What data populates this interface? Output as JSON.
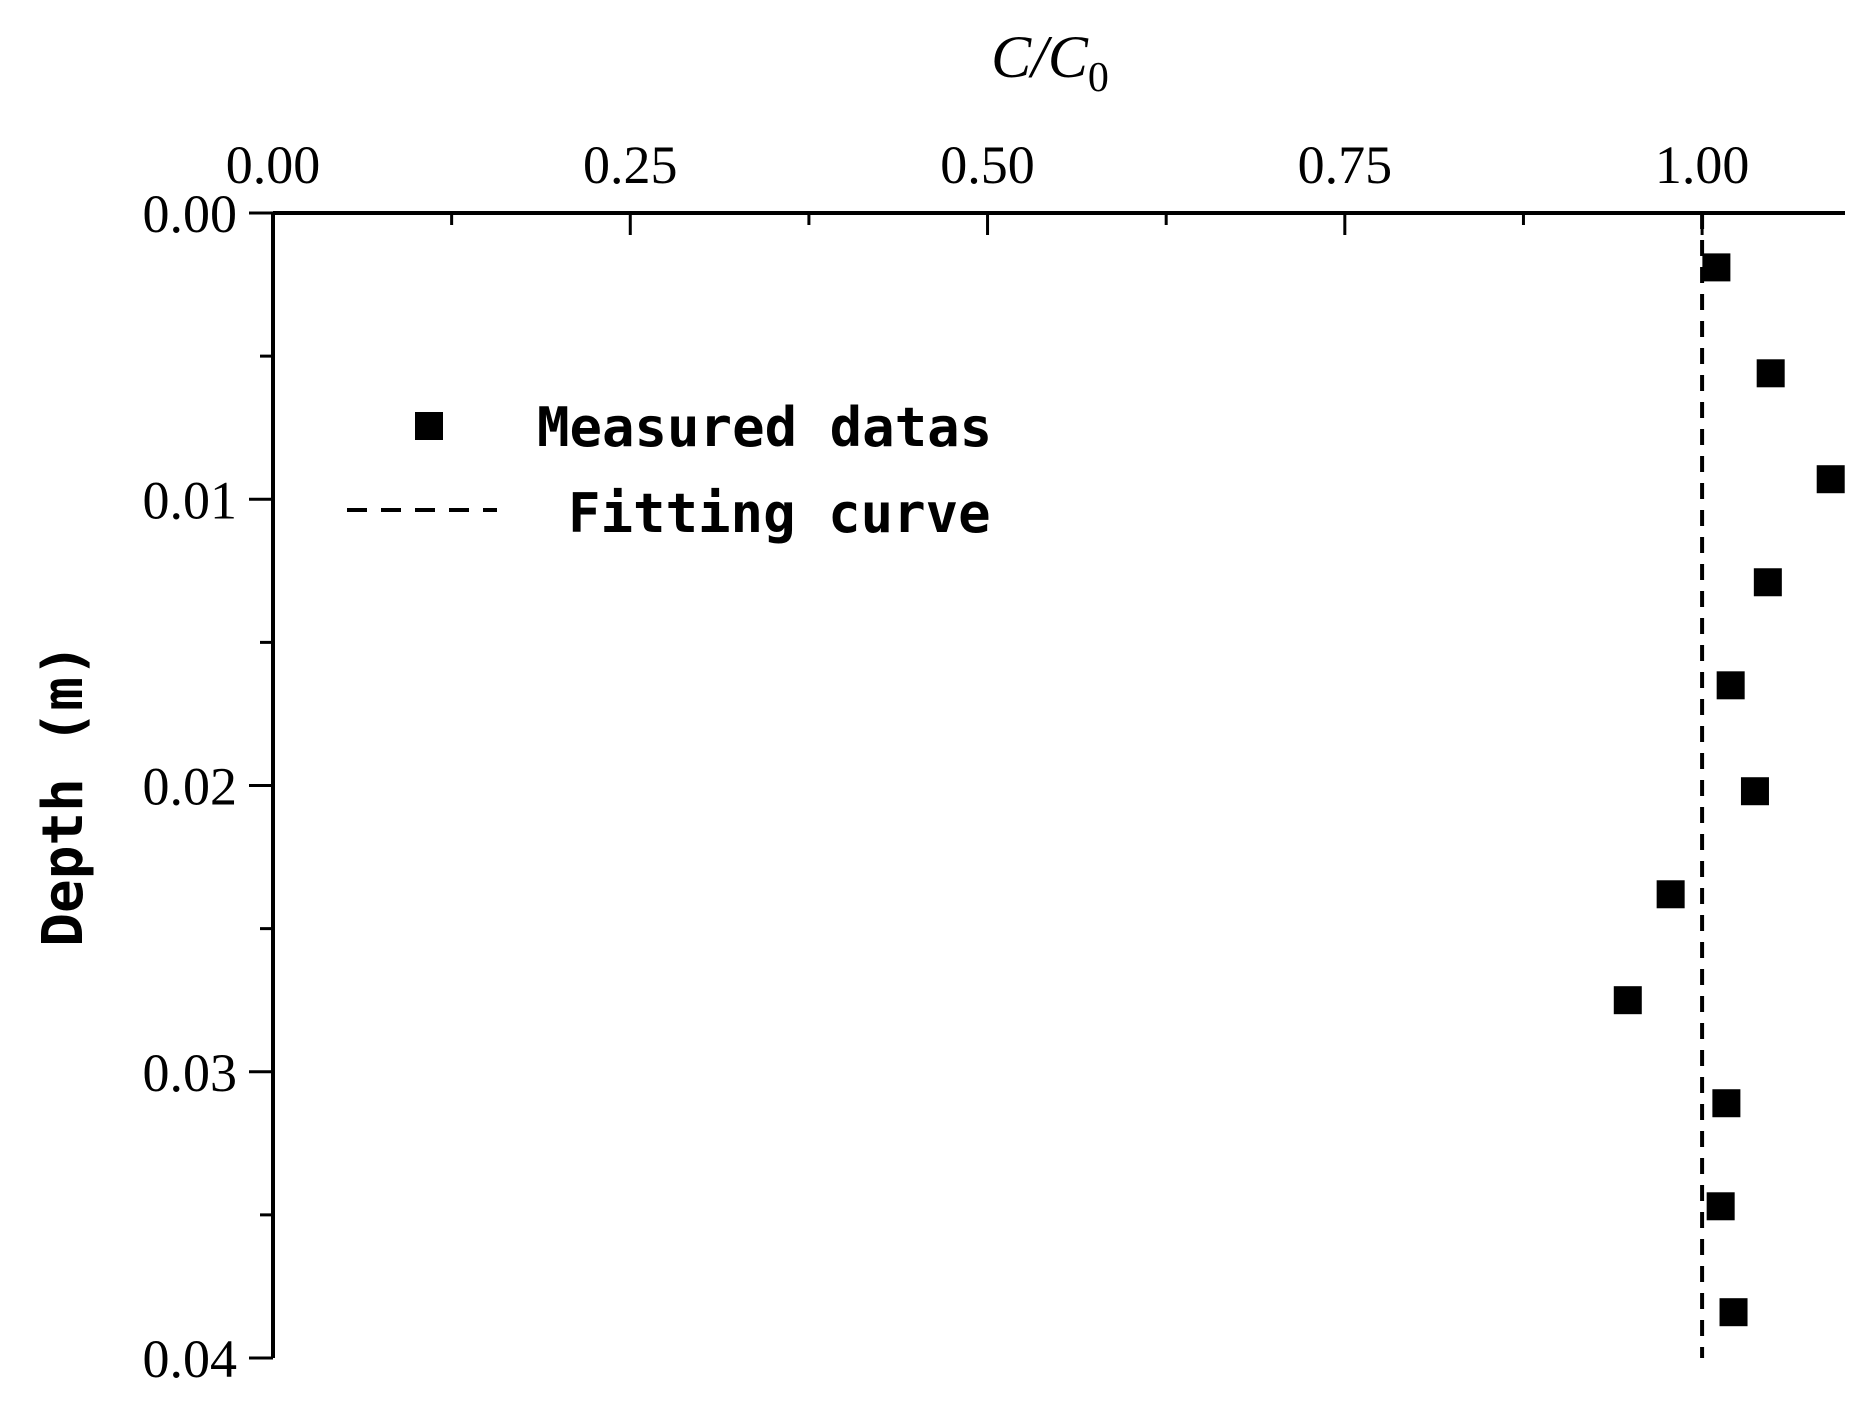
{
  "chart_data": {
    "type": "scatter",
    "title": "",
    "xlabel": "C/C0",
    "xlabel_main": "C/C",
    "xlabel_sub": "0",
    "ylabel": "Depth (m)",
    "x_axis_position": "top",
    "y_axis_inverted": true,
    "xlim": [
      0.0,
      1.1
    ],
    "ylim": [
      0.0,
      0.04
    ],
    "x_ticks": [
      0.0,
      0.25,
      0.5,
      0.75,
      1.0
    ],
    "x_tick_labels": [
      "0.00",
      "0.25",
      "0.50",
      "0.75",
      "1.00"
    ],
    "x_minor_ticks": [
      0.125,
      0.375,
      0.625,
      0.875
    ],
    "y_ticks": [
      0.0,
      0.01,
      0.02,
      0.03,
      0.04
    ],
    "y_tick_labels": [
      "0.00",
      "0.01",
      "0.02",
      "0.03",
      "0.04"
    ],
    "y_minor_ticks": [
      0.005,
      0.015,
      0.025,
      0.035
    ],
    "grid": false,
    "legend_position": "top-left",
    "series": [
      {
        "name": "Measured datas",
        "kind": "scatter",
        "marker": "square",
        "color": "#000000",
        "x": [
          1.01,
          1.048,
          1.09,
          1.046,
          1.02,
          1.037,
          0.978,
          0.948,
          1.017,
          1.013,
          1.022
        ],
        "y": [
          0.0019,
          0.0056,
          0.0093,
          0.0129,
          0.0165,
          0.0202,
          0.0238,
          0.0275,
          0.0311,
          0.0347,
          0.0384
        ]
      },
      {
        "name": "Fitting curve",
        "kind": "line",
        "style": "dashed",
        "color": "#000000",
        "x": [
          1.0,
          1.0
        ],
        "y": [
          0.0,
          0.04
        ]
      }
    ]
  }
}
